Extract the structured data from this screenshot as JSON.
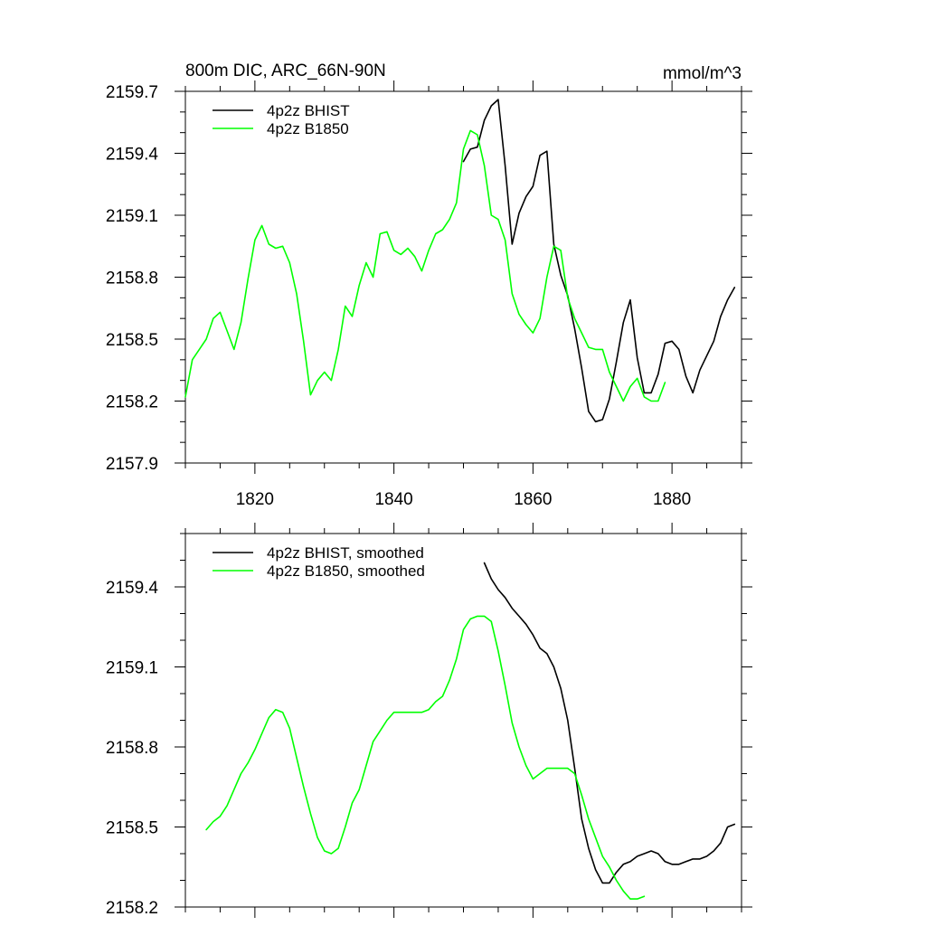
{
  "header": {
    "title": "800m DIC, ARC_66N-90N",
    "units": "mmol/m^3"
  },
  "chart_data": [
    {
      "type": "line",
      "title": "800m DIC, ARC_66N-90N",
      "units": "mmol/m^3",
      "xlim": [
        1810,
        1890
      ],
      "ylim": [
        2157.9,
        2159.7
      ],
      "xticks": [
        1820,
        1840,
        1860,
        1880
      ],
      "xtick_labels": [
        "1820",
        "1840",
        "1860",
        "1880"
      ],
      "yticks": [
        2157.9,
        2158.2,
        2158.5,
        2158.8,
        2159.1,
        2159.4,
        2159.7
      ],
      "ytick_labels": [
        "2157.9",
        "2158.2",
        "2158.5",
        "2158.8",
        "2159.1",
        "2159.4",
        "2159.7"
      ],
      "legend_position": "top-left",
      "series": [
        {
          "name": "4p2z BHIST",
          "color": "#000000",
          "x": [
            1850,
            1851,
            1852,
            1853,
            1854,
            1855,
            1856,
            1857,
            1858,
            1859,
            1860,
            1861,
            1862,
            1863,
            1864,
            1865,
            1866,
            1867,
            1868,
            1869,
            1870,
            1871,
            1872,
            1873,
            1874,
            1875,
            1876,
            1877,
            1878,
            1879,
            1880,
            1881,
            1882,
            1883,
            1884,
            1885,
            1886,
            1887,
            1888,
            1889
          ],
          "y": [
            2159.36,
            2159.42,
            2159.43,
            2159.56,
            2159.63,
            2159.66,
            2159.34,
            2158.96,
            2159.11,
            2159.19,
            2159.24,
            2159.39,
            2159.41,
            2158.96,
            2158.81,
            2158.71,
            2158.55,
            2158.36,
            2158.15,
            2158.1,
            2158.11,
            2158.21,
            2158.39,
            2158.58,
            2158.69,
            2158.41,
            2158.24,
            2158.24,
            2158.33,
            2158.48,
            2158.49,
            2158.45,
            2158.32,
            2158.24,
            2158.35,
            2158.42,
            2158.49,
            2158.61,
            2158.69,
            2158.75
          ]
        },
        {
          "name": "4p2z B1850",
          "color": "#00ff00",
          "x": [
            1810,
            1811,
            1812,
            1813,
            1814,
            1815,
            1816,
            1817,
            1818,
            1819,
            1820,
            1821,
            1822,
            1823,
            1824,
            1825,
            1826,
            1827,
            1828,
            1829,
            1830,
            1831,
            1832,
            1833,
            1834,
            1835,
            1836,
            1837,
            1838,
            1839,
            1840,
            1841,
            1842,
            1843,
            1844,
            1845,
            1846,
            1847,
            1848,
            1849,
            1850,
            1851,
            1852,
            1853,
            1854,
            1855,
            1856,
            1857,
            1858,
            1859,
            1860,
            1861,
            1862,
            1863,
            1864,
            1865,
            1866,
            1867,
            1868,
            1869,
            1870,
            1871,
            1872,
            1873,
            1874,
            1875,
            1876,
            1877,
            1878,
            1879
          ],
          "y": [
            2158.22,
            2158.4,
            2158.45,
            2158.5,
            2158.6,
            2158.63,
            2158.54,
            2158.45,
            2158.58,
            2158.79,
            2158.98,
            2159.05,
            2158.96,
            2158.94,
            2158.95,
            2158.87,
            2158.72,
            2158.49,
            2158.23,
            2158.3,
            2158.34,
            2158.3,
            2158.45,
            2158.66,
            2158.61,
            2158.76,
            2158.87,
            2158.8,
            2159.01,
            2159.02,
            2158.93,
            2158.91,
            2158.94,
            2158.9,
            2158.83,
            2158.93,
            2159.01,
            2159.03,
            2159.08,
            2159.16,
            2159.42,
            2159.51,
            2159.49,
            2159.34,
            2159.1,
            2159.08,
            2158.98,
            2158.72,
            2158.62,
            2158.57,
            2158.53,
            2158.6,
            2158.8,
            2158.95,
            2158.93,
            2158.7,
            2158.6,
            2158.53,
            2158.46,
            2158.45,
            2158.45,
            2158.34,
            2158.27,
            2158.2,
            2158.27,
            2158.31,
            2158.22,
            2158.2,
            2158.2,
            2158.29
          ]
        }
      ]
    },
    {
      "type": "line",
      "xlim": [
        1810,
        1890
      ],
      "ylim": [
        2158.2,
        2159.6
      ],
      "xticks": [
        1820,
        1840,
        1860,
        1880
      ],
      "yticks": [
        2158.2,
        2158.5,
        2158.8,
        2159.1,
        2159.4
      ],
      "ytick_labels": [
        "2158.2",
        "2158.5",
        "2158.8",
        "2159.1",
        "2159.4"
      ],
      "legend_position": "top-left",
      "series": [
        {
          "name": "4p2z BHIST, smoothed",
          "color": "#000000",
          "x": [
            1853,
            1854,
            1855,
            1856,
            1857,
            1858,
            1859,
            1860,
            1861,
            1862,
            1863,
            1864,
            1865,
            1866,
            1867,
            1868,
            1869,
            1870,
            1871,
            1872,
            1873,
            1874,
            1875,
            1876,
            1877,
            1878,
            1879,
            1880,
            1881,
            1882,
            1883,
            1884,
            1885,
            1886,
            1887,
            1888,
            1889
          ],
          "y": [
            2159.49,
            2159.43,
            2159.39,
            2159.36,
            2159.32,
            2159.29,
            2159.26,
            2159.22,
            2159.17,
            2159.15,
            2159.1,
            2159.02,
            2158.9,
            2158.72,
            2158.53,
            2158.42,
            2158.34,
            2158.29,
            2158.29,
            2158.33,
            2158.36,
            2158.37,
            2158.39,
            2158.4,
            2158.41,
            2158.4,
            2158.37,
            2158.36,
            2158.36,
            2158.37,
            2158.38,
            2158.38,
            2158.39,
            2158.41,
            2158.44,
            2158.5,
            2158.51
          ]
        },
        {
          "name": "4p2z B1850, smoothed",
          "color": "#00ff00",
          "x": [
            1813,
            1814,
            1815,
            1816,
            1817,
            1818,
            1819,
            1820,
            1821,
            1822,
            1823,
            1824,
            1825,
            1826,
            1827,
            1828,
            1829,
            1830,
            1831,
            1832,
            1833,
            1834,
            1835,
            1836,
            1837,
            1838,
            1839,
            1840,
            1841,
            1842,
            1843,
            1844,
            1845,
            1846,
            1847,
            1848,
            1849,
            1850,
            1851,
            1852,
            1853,
            1854,
            1855,
            1856,
            1857,
            1858,
            1859,
            1860,
            1861,
            1862,
            1863,
            1864,
            1865,
            1866,
            1867,
            1868,
            1869,
            1870,
            1871,
            1872,
            1873,
            1874,
            1875,
            1876
          ],
          "y": [
            2158.49,
            2158.52,
            2158.54,
            2158.58,
            2158.64,
            2158.7,
            2158.74,
            2158.79,
            2158.85,
            2158.91,
            2158.94,
            2158.93,
            2158.87,
            2158.76,
            2158.65,
            2158.55,
            2158.46,
            2158.41,
            2158.4,
            2158.42,
            2158.5,
            2158.59,
            2158.64,
            2158.73,
            2158.82,
            2158.86,
            2158.9,
            2158.93,
            2158.93,
            2158.93,
            2158.93,
            2158.93,
            2158.94,
            2158.97,
            2158.99,
            2159.05,
            2159.13,
            2159.24,
            2159.28,
            2159.29,
            2159.29,
            2159.27,
            2159.16,
            2159.03,
            2158.89,
            2158.8,
            2158.73,
            2158.68,
            2158.7,
            2158.72,
            2158.72,
            2158.72,
            2158.72,
            2158.7,
            2158.62,
            2158.53,
            2158.46,
            2158.39,
            2158.35,
            2158.3,
            2158.26,
            2158.23,
            2158.23,
            2158.24
          ]
        }
      ]
    }
  ]
}
